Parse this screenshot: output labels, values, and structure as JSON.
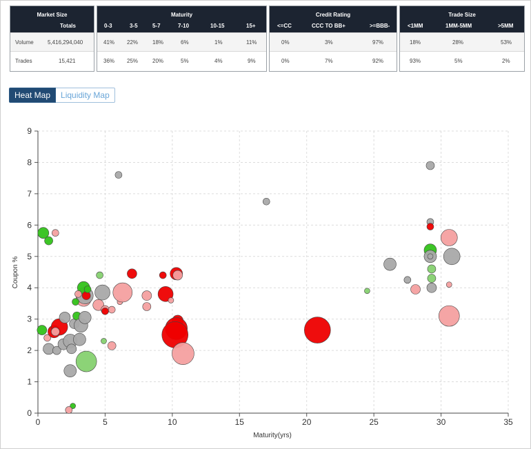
{
  "market_size": {
    "title": "Market Size",
    "col": "Totals",
    "rows": [
      {
        "label": "Volume",
        "value": "5,416,294,040"
      },
      {
        "label": "Trades",
        "value": "15,421"
      }
    ]
  },
  "maturity": {
    "title": "Maturity",
    "cols": [
      "0-3",
      "3-5",
      "5-7",
      "7-10",
      "10-15",
      "15+"
    ],
    "rows": [
      [
        "41%",
        "22%",
        "18%",
        "6%",
        "1%",
        "11%"
      ],
      [
        "36%",
        "25%",
        "20%",
        "5%",
        "4%",
        "9%"
      ]
    ]
  },
  "credit_rating": {
    "title": "Credit Rating",
    "cols": [
      "<=CC",
      "CCC TO BB+",
      ">=BBB-"
    ],
    "rows": [
      [
        "0%",
        "3%",
        "97%"
      ],
      [
        "0%",
        "7%",
        "92%"
      ]
    ]
  },
  "trade_size": {
    "title": "Trade Size",
    "cols": [
      "<1MM",
      "1MM-5MM",
      ">5MM"
    ],
    "rows": [
      [
        "18%",
        "28%",
        "53%"
      ],
      [
        "93%",
        "5%",
        "2%"
      ]
    ]
  },
  "map_toggle": {
    "heat": "Heat Map",
    "liquidity": "Liquidity Map",
    "active": "heat"
  },
  "colors": {
    "header_bg": "#1c2431",
    "gray": "#a9a9a9",
    "green": "#33c21a",
    "light_green": "#86d170",
    "red": "#ee0000",
    "pink": "#f4a0a0",
    "toggle_active": "#214a73"
  },
  "chart_data": {
    "type": "scatter",
    "xlabel": "Maturity(yrs)",
    "ylabel": "Coupon %",
    "xlim": [
      0,
      35
    ],
    "ylim": [
      0,
      9
    ],
    "xticks": [
      0,
      5,
      10,
      15,
      20,
      25,
      30,
      35
    ],
    "yticks": [
      0,
      1,
      2,
      3,
      4,
      5,
      6,
      7,
      8,
      9
    ],
    "grid": true,
    "points": [
      {
        "x": 0.4,
        "y": 5.75,
        "r": 8,
        "c": "green"
      },
      {
        "x": 0.8,
        "y": 5.5,
        "r": 6,
        "c": "green"
      },
      {
        "x": 1.3,
        "y": 5.75,
        "r": 5,
        "c": "pink"
      },
      {
        "x": 0.3,
        "y": 2.65,
        "r": 7,
        "c": "green"
      },
      {
        "x": 0.7,
        "y": 2.4,
        "r": 5,
        "c": "pink"
      },
      {
        "x": 0.8,
        "y": 2.05,
        "r": 8,
        "c": "gray"
      },
      {
        "x": 1.4,
        "y": 2.0,
        "r": 6,
        "c": "gray"
      },
      {
        "x": 1.2,
        "y": 2.6,
        "r": 9,
        "c": "red"
      },
      {
        "x": 1.6,
        "y": 2.75,
        "r": 12,
        "c": "red"
      },
      {
        "x": 1.3,
        "y": 2.6,
        "r": 6,
        "c": "pink"
      },
      {
        "x": 1.9,
        "y": 2.2,
        "r": 8,
        "c": "gray"
      },
      {
        "x": 2.0,
        "y": 3.05,
        "r": 8,
        "c": "gray"
      },
      {
        "x": 2.4,
        "y": 2.3,
        "r": 10,
        "c": "gray"
      },
      {
        "x": 2.7,
        "y": 2.85,
        "r": 7,
        "c": "gray"
      },
      {
        "x": 2.5,
        "y": 2.05,
        "r": 7,
        "c": "gray"
      },
      {
        "x": 2.9,
        "y": 3.1,
        "r": 6,
        "c": "green"
      },
      {
        "x": 3.1,
        "y": 2.35,
        "r": 9,
        "c": "gray"
      },
      {
        "x": 3.2,
        "y": 2.8,
        "r": 10,
        "c": "gray"
      },
      {
        "x": 3.5,
        "y": 3.05,
        "r": 9,
        "c": "gray"
      },
      {
        "x": 3.4,
        "y": 3.65,
        "r": 11,
        "c": "pink"
      },
      {
        "x": 3.5,
        "y": 3.75,
        "r": 12,
        "c": "gray"
      },
      {
        "x": 3.4,
        "y": 4.0,
        "r": 9,
        "c": "green"
      },
      {
        "x": 3.6,
        "y": 3.75,
        "r": 6,
        "c": "red"
      },
      {
        "x": 2.8,
        "y": 3.55,
        "r": 5,
        "c": "green"
      },
      {
        "x": 3.0,
        "y": 3.8,
        "r": 5,
        "c": "pink"
      },
      {
        "x": 3.7,
        "y": 3.95,
        "r": 5,
        "c": "green"
      },
      {
        "x": 2.4,
        "y": 1.35,
        "r": 9,
        "c": "gray"
      },
      {
        "x": 2.6,
        "y": 0.23,
        "r": 4,
        "c": "green"
      },
      {
        "x": 2.3,
        "y": 0.1,
        "r": 5,
        "c": "pink"
      },
      {
        "x": 3.6,
        "y": 1.65,
        "r": 15,
        "c": "light_green"
      },
      {
        "x": 4.6,
        "y": 4.4,
        "r": 5,
        "c": "light_green"
      },
      {
        "x": 4.8,
        "y": 3.85,
        "r": 11,
        "c": "gray"
      },
      {
        "x": 4.5,
        "y": 3.45,
        "r": 8,
        "c": "pink"
      },
      {
        "x": 5.0,
        "y": 3.3,
        "r": 6,
        "c": "pink"
      },
      {
        "x": 5.0,
        "y": 3.25,
        "r": 5,
        "c": "red"
      },
      {
        "x": 5.5,
        "y": 3.3,
        "r": 5,
        "c": "pink"
      },
      {
        "x": 4.9,
        "y": 2.3,
        "r": 4,
        "c": "light_green"
      },
      {
        "x": 5.5,
        "y": 2.15,
        "r": 6,
        "c": "pink"
      },
      {
        "x": 6.1,
        "y": 3.55,
        "r": 4,
        "c": "pink"
      },
      {
        "x": 6.3,
        "y": 3.85,
        "r": 14,
        "c": "pink"
      },
      {
        "x": 7.0,
        "y": 4.45,
        "r": 7,
        "c": "red"
      },
      {
        "x": 6.0,
        "y": 7.6,
        "r": 5,
        "c": "gray"
      },
      {
        "x": 8.1,
        "y": 3.75,
        "r": 7,
        "c": "pink"
      },
      {
        "x": 8.1,
        "y": 3.4,
        "r": 6,
        "c": "pink"
      },
      {
        "x": 9.3,
        "y": 4.4,
        "r": 5,
        "c": "red"
      },
      {
        "x": 9.5,
        "y": 3.8,
        "r": 11,
        "c": "red"
      },
      {
        "x": 9.9,
        "y": 3.6,
        "r": 4,
        "c": "pink"
      },
      {
        "x": 10.3,
        "y": 4.45,
        "r": 9,
        "c": "red"
      },
      {
        "x": 10.4,
        "y": 4.4,
        "r": 7,
        "c": "pink"
      },
      {
        "x": 10.4,
        "y": 2.95,
        "r": 8,
        "c": "red"
      },
      {
        "x": 10.3,
        "y": 2.7,
        "r": 16,
        "c": "red"
      },
      {
        "x": 10.2,
        "y": 2.5,
        "r": 19,
        "c": "red"
      },
      {
        "x": 10.8,
        "y": 1.9,
        "r": 16,
        "c": "pink"
      },
      {
        "x": 17.0,
        "y": 6.75,
        "r": 5,
        "c": "gray"
      },
      {
        "x": 20.8,
        "y": 2.65,
        "r": 19,
        "c": "red"
      },
      {
        "x": 24.5,
        "y": 3.9,
        "r": 4,
        "c": "light_green"
      },
      {
        "x": 26.2,
        "y": 4.75,
        "r": 9,
        "c": "gray"
      },
      {
        "x": 27.5,
        "y": 4.25,
        "r": 5,
        "c": "gray"
      },
      {
        "x": 28.1,
        "y": 3.95,
        "r": 7,
        "c": "pink"
      },
      {
        "x": 29.2,
        "y": 7.9,
        "r": 6,
        "c": "gray"
      },
      {
        "x": 29.2,
        "y": 6.1,
        "r": 5,
        "c": "gray"
      },
      {
        "x": 29.2,
        "y": 5.95,
        "r": 5,
        "c": "red"
      },
      {
        "x": 29.2,
        "y": 5.2,
        "r": 9,
        "c": "green"
      },
      {
        "x": 29.2,
        "y": 5.0,
        "r": 9,
        "c": "gray"
      },
      {
        "x": 29.2,
        "y": 5.0,
        "r": 4,
        "c": "gray"
      },
      {
        "x": 29.3,
        "y": 4.6,
        "r": 6,
        "c": "light_green"
      },
      {
        "x": 29.3,
        "y": 4.3,
        "r": 6,
        "c": "light_green"
      },
      {
        "x": 29.3,
        "y": 4.0,
        "r": 7,
        "c": "gray"
      },
      {
        "x": 30.6,
        "y": 5.6,
        "r": 12,
        "c": "pink"
      },
      {
        "x": 30.8,
        "y": 5.0,
        "r": 12,
        "c": "gray"
      },
      {
        "x": 30.6,
        "y": 4.1,
        "r": 4,
        "c": "pink"
      },
      {
        "x": 30.6,
        "y": 3.1,
        "r": 15,
        "c": "pink"
      }
    ]
  }
}
